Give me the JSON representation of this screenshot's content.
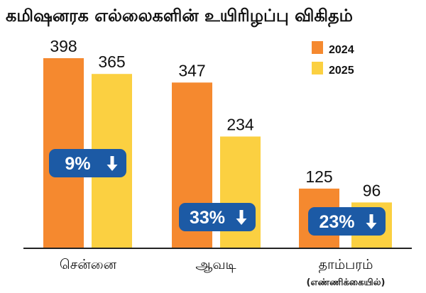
{
  "chart_data": {
    "type": "bar",
    "title": "கமிஷனரக எல்லைகளின் உயிரிழப்பு விகிதம்",
    "categories": [
      "சென்னை",
      "ஆவடி",
      "தாம்பரம்"
    ],
    "series": [
      {
        "name": "2024",
        "color": "#f5892f",
        "values": [
          398,
          347,
          125
        ]
      },
      {
        "name": "2025",
        "color": "#fbd041",
        "values": [
          365,
          234,
          96
        ]
      }
    ],
    "decreases": [
      "9%",
      "33%",
      "23%"
    ],
    "footnote": "(எண்ணிக்கையில்)",
    "ylim": [
      0,
      398
    ],
    "legend_position": "top-right",
    "badge_color": "#1c5aa5",
    "axis_color": "#222222"
  }
}
